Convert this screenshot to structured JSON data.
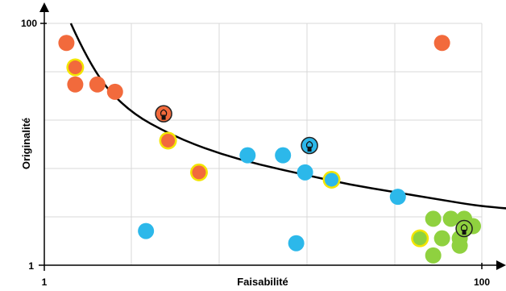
{
  "chart_data": {
    "type": "scatter",
    "title": "",
    "xlabel": "Faisabilité",
    "ylabel": "Originalité",
    "x_ticks": [
      "1",
      "100"
    ],
    "y_ticks": [
      "100",
      "1"
    ],
    "xlim": [
      1,
      100
    ],
    "ylim": [
      1,
      100
    ],
    "grid": true,
    "colors": {
      "red": "#f26a3c",
      "blue": "#2cb8ea",
      "green": "#8fd13f",
      "highlight": "#f3e500",
      "curve": "#000000",
      "grid": "#d9d9d9"
    },
    "curve": {
      "description_free": true,
      "points": [
        [
          7,
          100
        ],
        [
          12,
          80
        ],
        [
          20,
          64
        ],
        [
          30,
          54
        ],
        [
          40,
          47
        ],
        [
          50,
          42
        ],
        [
          60,
          38
        ],
        [
          70,
          34
        ],
        [
          80,
          31
        ],
        [
          90,
          28
        ],
        [
          100,
          25
        ],
        [
          115,
          23
        ]
      ]
    },
    "points": [
      {
        "x": 6,
        "y": 92,
        "color": "red",
        "highlight": false
      },
      {
        "x": 8,
        "y": 82,
        "color": "red",
        "highlight": true
      },
      {
        "x": 8,
        "y": 75,
        "color": "red",
        "highlight": false
      },
      {
        "x": 13,
        "y": 75,
        "color": "red",
        "highlight": false
      },
      {
        "x": 17,
        "y": 72,
        "color": "red",
        "highlight": false
      },
      {
        "x": 28,
        "y": 63,
        "color": "red",
        "highlight": false,
        "icon": "lightbulb"
      },
      {
        "x": 29,
        "y": 52,
        "color": "red",
        "highlight": true
      },
      {
        "x": 36,
        "y": 39,
        "color": "red",
        "highlight": true
      },
      {
        "x": 91,
        "y": 92,
        "color": "red",
        "highlight": false
      },
      {
        "x": 24,
        "y": 15,
        "color": "blue",
        "highlight": false
      },
      {
        "x": 47,
        "y": 46,
        "color": "blue",
        "highlight": false
      },
      {
        "x": 55,
        "y": 46,
        "color": "blue",
        "highlight": false
      },
      {
        "x": 58,
        "y": 10,
        "color": "blue",
        "highlight": false
      },
      {
        "x": 60,
        "y": 39,
        "color": "blue",
        "highlight": false
      },
      {
        "x": 61,
        "y": 50,
        "color": "blue",
        "highlight": false,
        "icon": "lightbulb"
      },
      {
        "x": 66,
        "y": 36,
        "color": "blue",
        "highlight": true
      },
      {
        "x": 81,
        "y": 29,
        "color": "blue",
        "highlight": false
      },
      {
        "x": 89,
        "y": 20,
        "color": "green",
        "highlight": false
      },
      {
        "x": 93,
        "y": 20,
        "color": "green",
        "highlight": false
      },
      {
        "x": 96,
        "y": 20,
        "color": "green",
        "highlight": false
      },
      {
        "x": 86,
        "y": 12,
        "color": "green",
        "highlight": true
      },
      {
        "x": 91,
        "y": 12,
        "color": "green",
        "highlight": false
      },
      {
        "x": 95,
        "y": 12,
        "color": "green",
        "highlight": false
      },
      {
        "x": 98,
        "y": 17,
        "color": "green",
        "highlight": false
      },
      {
        "x": 95,
        "y": 9,
        "color": "green",
        "highlight": false
      },
      {
        "x": 96,
        "y": 16,
        "color": "green",
        "highlight": false,
        "icon": "lightbulb"
      },
      {
        "x": 89,
        "y": 5,
        "color": "green",
        "highlight": false
      }
    ]
  }
}
